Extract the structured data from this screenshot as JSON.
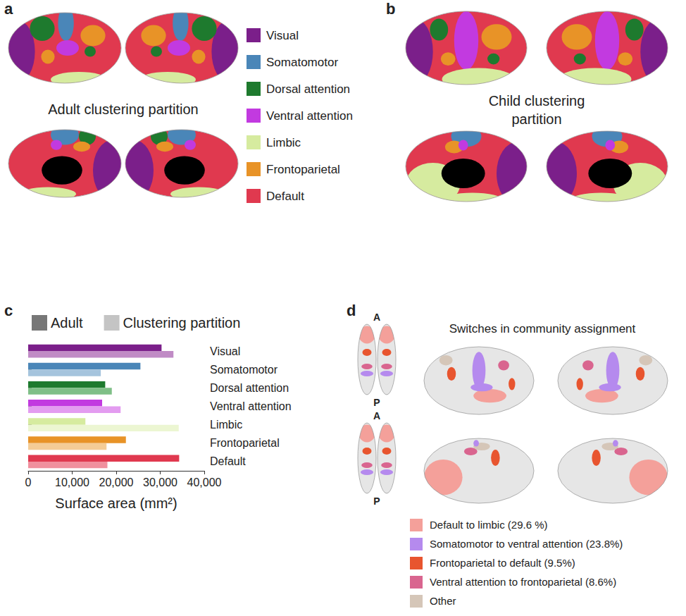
{
  "chart_data": {
    "type": "bar",
    "orientation": "horizontal",
    "x_label": "Surface area (mm²)",
    "categories": [
      "Visual",
      "Somatomotor",
      "Dorsal attention",
      "Ventral attention",
      "Limbic",
      "Frontoparietal",
      "Default"
    ],
    "series": [
      {
        "name": "Adult",
        "color": "#777777",
        "colors": [
          "#7b1f8a",
          "#4a86b8",
          "#1e7a2e",
          "#c23ae0",
          "#d6eb9f",
          "#e89327",
          "#e0394f"
        ],
        "values": [
          30300,
          25500,
          17500,
          16800,
          13000,
          22200,
          34300
        ]
      },
      {
        "name": "Clustering partition",
        "color": "#c4c4c4",
        "colors": [
          "#c08bc5",
          "#a5c4dd",
          "#7fbf87",
          "#e39cf0",
          "#ecf6d2",
          "#f4cc96",
          "#f0909e"
        ],
        "values": [
          33000,
          16500,
          19000,
          21000,
          34200,
          17800,
          18000
        ]
      }
    ],
    "xlim": [
      0,
      40000
    ],
    "xticks": [
      0,
      10000,
      20000,
      30000,
      40000
    ],
    "grid": false,
    "legend": "top"
  },
  "figure": {
    "networks": [
      {
        "name": "Visual",
        "color": "#7b1f8a"
      },
      {
        "name": "Somatomotor",
        "color": "#4a86b8"
      },
      {
        "name": "Dorsal attention",
        "color": "#1e7a2e"
      },
      {
        "name": "Ventral attention",
        "color": "#c23ae0"
      },
      {
        "name": "Limbic",
        "color": "#d6eb9f"
      },
      {
        "name": "Frontoparietal",
        "color": "#e89327"
      },
      {
        "name": "Default",
        "color": "#e0394f"
      }
    ],
    "panels": {
      "a": {
        "letter": "a",
        "title": "Adult clustering partition"
      },
      "b": {
        "letter": "b",
        "title": "Child clustering partition"
      },
      "c": {
        "letter": "c"
      },
      "d": {
        "letter": "d",
        "title": "Switches in community assignment",
        "anterior": "A",
        "posterior": "P",
        "legend": [
          {
            "label": "Default to limbic (29.6 %)",
            "color": "#f4a09a"
          },
          {
            "label": "Somatomotor to ventral attention (23.8%)",
            "color": "#b58aee"
          },
          {
            "label": "Frontoparietal to default (9.5%)",
            "color": "#e8552f"
          },
          {
            "label": "Ventral attention to frontoparietal (8.6%)",
            "color": "#d9658f"
          },
          {
            "label": "Other",
            "color": "#d5c6b8"
          }
        ]
      }
    }
  }
}
